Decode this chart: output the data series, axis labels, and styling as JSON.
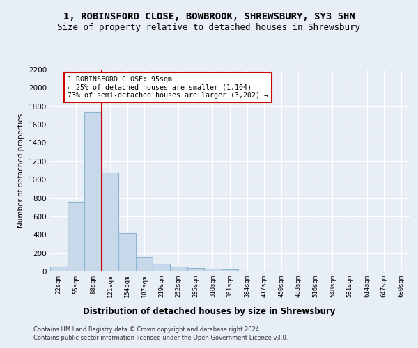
{
  "title_line1": "1, ROBINSFORD CLOSE, BOWBROOK, SHREWSBURY, SY3 5HN",
  "title_line2": "Size of property relative to detached houses in Shrewsbury",
  "xlabel": "Distribution of detached houses by size in Shrewsbury",
  "ylabel": "Number of detached properties",
  "footer_line1": "Contains HM Land Registry data © Crown copyright and database right 2024.",
  "footer_line2": "Contains public sector information licensed under the Open Government Licence v3.0.",
  "bin_labels": [
    "22sqm",
    "55sqm",
    "88sqm",
    "121sqm",
    "154sqm",
    "187sqm",
    "219sqm",
    "252sqm",
    "285sqm",
    "318sqm",
    "351sqm",
    "384sqm",
    "417sqm",
    "450sqm",
    "483sqm",
    "516sqm",
    "548sqm",
    "581sqm",
    "614sqm",
    "647sqm",
    "680sqm"
  ],
  "bar_values": [
    55,
    760,
    1740,
    1075,
    420,
    160,
    85,
    50,
    40,
    30,
    20,
    5,
    5,
    0,
    0,
    0,
    0,
    0,
    0,
    0,
    0
  ],
  "bar_color": "#c8d8eb",
  "bar_edgecolor": "#8ab4d0",
  "vline_x": 2.5,
  "vline_color": "#cc0000",
  "annotation_text": "1 ROBINSFORD CLOSE: 95sqm\n← 25% of detached houses are smaller (1,104)\n73% of semi-detached houses are larger (3,202) →",
  "annotation_box_color": "#ffffff",
  "annotation_box_edgecolor": "#cc0000",
  "ylim": [
    0,
    2200
  ],
  "yticks": [
    0,
    200,
    400,
    600,
    800,
    1000,
    1200,
    1400,
    1600,
    1800,
    2000,
    2200
  ],
  "bg_color": "#e8eef5",
  "plot_bg_color": "#e8eef5",
  "grid_color": "#ffffff",
  "title_fontsize": 10,
  "subtitle_fontsize": 9
}
